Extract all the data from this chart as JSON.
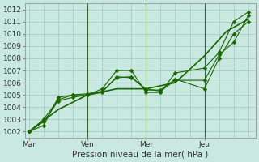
{
  "background_color": "#c8e8e0",
  "grid_color": "#a0c8c0",
  "line_color": "#1a6600",
  "ylabel": "Pression niveau de la mer( hPa )",
  "ylim": [
    1001.5,
    1012.5
  ],
  "yticks": [
    1002,
    1003,
    1004,
    1005,
    1006,
    1007,
    1008,
    1009,
    1010,
    1011,
    1012
  ],
  "xtick_labels": [
    "Mar",
    "Ven",
    "Mer",
    "Jeu"
  ],
  "xtick_positions": [
    0,
    8,
    16,
    24
  ],
  "xlim": [
    -0.5,
    31
  ],
  "vline_positions": [
    8,
    16,
    24
  ],
  "vline_color": "#336633",
  "lines": [
    {
      "x": [
        0,
        4,
        8,
        12,
        16,
        20,
        24,
        27,
        30
      ],
      "y": [
        1002.0,
        1003.8,
        1005.0,
        1005.5,
        1005.5,
        1006.0,
        1008.2,
        1010.2,
        1011.2
      ],
      "marker": null,
      "linewidth": 1.2
    },
    {
      "x": [
        0,
        2,
        4,
        6,
        8,
        10,
        12,
        14,
        16,
        18,
        20,
        24,
        26,
        28,
        30
      ],
      "y": [
        1002.0,
        1002.8,
        1004.5,
        1004.8,
        1005.0,
        1005.2,
        1006.5,
        1006.4,
        1005.5,
        1005.3,
        1006.2,
        1006.2,
        1008.3,
        1009.3,
        1011.5
      ],
      "marker": "D",
      "markersize": 2.5,
      "linewidth": 0.8
    },
    {
      "x": [
        0,
        2,
        4,
        6,
        8,
        10,
        12,
        14,
        16,
        18,
        20,
        24,
        26,
        28,
        30
      ],
      "y": [
        1002.0,
        1002.5,
        1004.8,
        1005.0,
        1005.0,
        1005.5,
        1007.0,
        1007.0,
        1005.2,
        1005.2,
        1006.8,
        1007.2,
        1008.5,
        1011.0,
        1011.8
      ],
      "marker": "D",
      "markersize": 2.5,
      "linewidth": 0.8
    },
    {
      "x": [
        0,
        2,
        4,
        6,
        8,
        10,
        12,
        14,
        16,
        18,
        20,
        24,
        26,
        28,
        30
      ],
      "y": [
        1002.0,
        1003.0,
        1004.6,
        1005.0,
        1005.1,
        1005.3,
        1006.4,
        1006.5,
        1005.4,
        1005.4,
        1006.3,
        1005.5,
        1008.0,
        1010.0,
        1011.0
      ],
      "marker": "D",
      "markersize": 2.5,
      "linewidth": 0.8
    }
  ],
  "tick_fontsize": 6.5,
  "label_fontsize": 7.5
}
